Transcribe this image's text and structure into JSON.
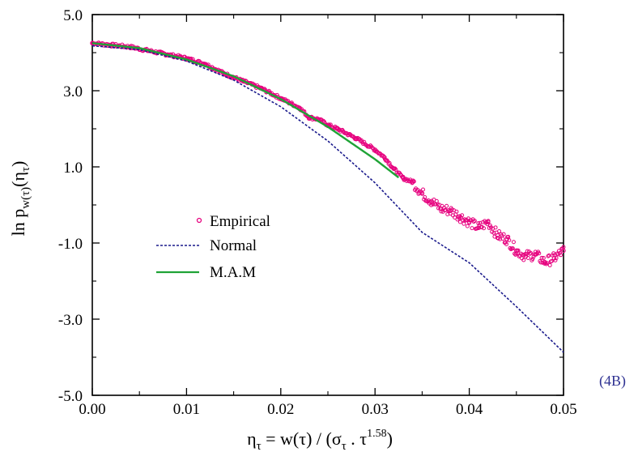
{
  "chart_data": {
    "type": "line",
    "xlim": [
      0.0,
      0.05
    ],
    "ylim": [
      -5.0,
      5.0
    ],
    "x_ticks": [
      0.0,
      0.01,
      0.02,
      0.03,
      0.04,
      0.05
    ],
    "x_tick_labels": [
      "0.00",
      "0.01",
      "0.02",
      "0.03",
      "0.04",
      "0.05"
    ],
    "y_ticks": [
      5.0,
      3.0,
      1.0,
      -1.0,
      -3.0,
      -5.0
    ],
    "y_tick_labels": [
      "5.0",
      "3.0",
      "1.0",
      "-1.0",
      "-3.0",
      "-5.0"
    ],
    "xlabel": {
      "eta": "η",
      "tau_sub": "τ",
      "mid": " = w(τ) / (σ",
      "sigma_sub": "τ",
      "dot": " . τ",
      "exp": "1.58",
      "close": ")"
    },
    "ylabel": {
      "ln": "ln p",
      "sub": "w(τ)",
      "arg": "(η",
      "arg_sub": "τ",
      "close": ")"
    },
    "panel_label": "(4B)",
    "grid": false,
    "legend_position": "center-left",
    "series": [
      {
        "name": "Empirical",
        "style": "markers",
        "marker": "open-circle",
        "color": "#e6007e",
        "x": [
          0.0,
          0.002,
          0.004,
          0.006,
          0.008,
          0.01,
          0.012,
          0.014,
          0.015,
          0.016,
          0.018,
          0.02,
          0.022,
          0.023,
          0.024,
          0.025,
          0.026,
          0.028,
          0.03,
          0.031,
          0.032,
          0.033,
          0.034,
          0.035,
          0.036,
          0.037,
          0.038,
          0.039,
          0.04,
          0.041,
          0.042,
          0.043,
          0.044,
          0.045,
          0.046,
          0.047,
          0.048,
          0.049,
          0.05
        ],
        "y": [
          4.25,
          4.2,
          4.15,
          4.05,
          3.95,
          3.85,
          3.7,
          3.45,
          3.35,
          3.25,
          3.05,
          2.8,
          2.55,
          2.3,
          2.25,
          2.1,
          2.0,
          1.75,
          1.45,
          1.25,
          0.95,
          0.7,
          0.6,
          0.3,
          0.1,
          -0.1,
          -0.15,
          -0.3,
          -0.45,
          -0.6,
          -0.45,
          -0.8,
          -0.9,
          -1.2,
          -1.35,
          -1.3,
          -1.5,
          -1.4,
          -1.2
        ]
      },
      {
        "name": "Normal",
        "style": "dashed",
        "color": "#1a1a8c",
        "x": [
          0.0,
          0.005,
          0.01,
          0.015,
          0.02,
          0.025,
          0.03,
          0.035,
          0.04,
          0.045,
          0.05
        ],
        "y": [
          4.18,
          4.08,
          3.78,
          3.28,
          2.58,
          1.68,
          0.58,
          -0.72,
          -1.52,
          -2.67,
          -3.87
        ]
      },
      {
        "name": "M.A.M",
        "style": "solid",
        "color": "#1fa336",
        "x": [
          0.0,
          0.005,
          0.01,
          0.015,
          0.02,
          0.025,
          0.03,
          0.0325
        ],
        "y": [
          4.25,
          4.12,
          3.82,
          3.38,
          2.78,
          2.05,
          1.2,
          0.72
        ]
      }
    ]
  }
}
